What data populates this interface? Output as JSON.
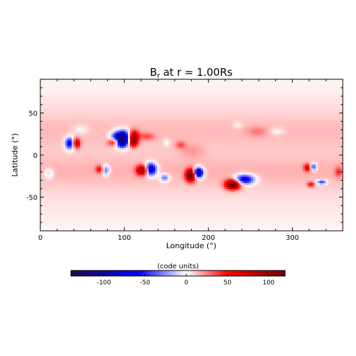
{
  "chart_data": [
    {
      "type": "heatmap",
      "title": {
        "prefix": "B",
        "subscript": "r",
        "suffix": " at r = 1.00Rs"
      },
      "xlabel": "Longitude (°)",
      "ylabel": "Latitude (°)",
      "xlim": [
        0,
        360
      ],
      "ylim": [
        -90,
        90
      ],
      "x_ticks": [
        0,
        100,
        200,
        300
      ],
      "y_ticks": [
        -50,
        0,
        50
      ],
      "grid": false,
      "background_value": 8,
      "bands": [
        {
          "lat": 30,
          "width": 20,
          "value": 6
        },
        {
          "lat": -20,
          "width": 18,
          "value": 7
        }
      ],
      "features": [
        {
          "lon": 100,
          "lat": 20,
          "value": -140,
          "w": 8,
          "h": 6
        },
        {
          "lon": 110,
          "lat": 22,
          "value": 110,
          "w": 5,
          "h": 5
        },
        {
          "lon": 110,
          "lat": 15,
          "value": 90,
          "w": 4,
          "h": 4
        },
        {
          "lon": 88,
          "lat": 15,
          "value": 55,
          "w": 5,
          "h": 3
        },
        {
          "lon": 96,
          "lat": 13,
          "value": -50,
          "w": 4,
          "h": 3
        },
        {
          "lon": 91,
          "lat": 23,
          "value": -25,
          "w": 5,
          "h": 3
        },
        {
          "lon": 127,
          "lat": 22,
          "value": 25,
          "w": 6,
          "h": 3
        },
        {
          "lon": 35,
          "lat": 14,
          "value": -75,
          "w": 4,
          "h": 5
        },
        {
          "lon": 43,
          "lat": 14,
          "value": 70,
          "w": 3,
          "h": 4
        },
        {
          "lon": 48,
          "lat": 30,
          "value": -12,
          "w": 7,
          "h": 4
        },
        {
          "lon": 167,
          "lat": 12,
          "value": 25,
          "w": 4,
          "h": 3
        },
        {
          "lon": 150,
          "lat": 15,
          "value": -12,
          "w": 3,
          "h": 3
        },
        {
          "lon": 122,
          "lat": -18,
          "value": 100,
          "w": 5,
          "h": 4
        },
        {
          "lon": 131,
          "lat": -17,
          "value": -110,
          "w": 5,
          "h": 5
        },
        {
          "lon": 148,
          "lat": -27,
          "value": -45,
          "w": 4,
          "h": 3
        },
        {
          "lon": 179,
          "lat": -24,
          "value": 115,
          "w": 4,
          "h": 5
        },
        {
          "lon": 188,
          "lat": -21,
          "value": -125,
          "w": 4,
          "h": 4
        },
        {
          "lon": 243,
          "lat": -29,
          "value": -85,
          "w": 8,
          "h": 4
        },
        {
          "lon": 229,
          "lat": -35,
          "value": 120,
          "w": 6,
          "h": 4
        },
        {
          "lon": 78,
          "lat": -18,
          "value": -45,
          "w": 3,
          "h": 4
        },
        {
          "lon": 70,
          "lat": -17,
          "value": 40,
          "w": 3,
          "h": 3
        },
        {
          "lon": 10,
          "lat": -22,
          "value": -22,
          "w": 4,
          "h": 4
        },
        {
          "lon": 325,
          "lat": -14,
          "value": -55,
          "w": 3,
          "h": 3
        },
        {
          "lon": 318,
          "lat": -15,
          "value": 55,
          "w": 3,
          "h": 3
        },
        {
          "lon": 335,
          "lat": -32,
          "value": -55,
          "w": 4,
          "h": 2
        },
        {
          "lon": 322,
          "lat": -35,
          "value": 45,
          "w": 3,
          "h": 2
        },
        {
          "lon": 355,
          "lat": -20,
          "value": 30,
          "w": 3,
          "h": 4
        },
        {
          "lon": 282,
          "lat": 28,
          "value": -12,
          "w": 6,
          "h": 3
        },
        {
          "lon": 258,
          "lat": 28,
          "value": 14,
          "w": 8,
          "h": 4
        },
        {
          "lon": 235,
          "lat": 35,
          "value": -10,
          "w": 4,
          "h": 3
        },
        {
          "lon": 180,
          "lat": 5,
          "value": 10,
          "w": 10,
          "h": 6
        }
      ]
    },
    {
      "type": "colorbar",
      "label": "(code units)",
      "range": [
        -140,
        120
      ],
      "ticks": [
        -100,
        -50,
        0,
        50,
        100
      ],
      "colormap": [
        "#1a0a4a",
        "#0000ff",
        "#ffffff",
        "#ff0000",
        "#6b0000"
      ]
    }
  ]
}
